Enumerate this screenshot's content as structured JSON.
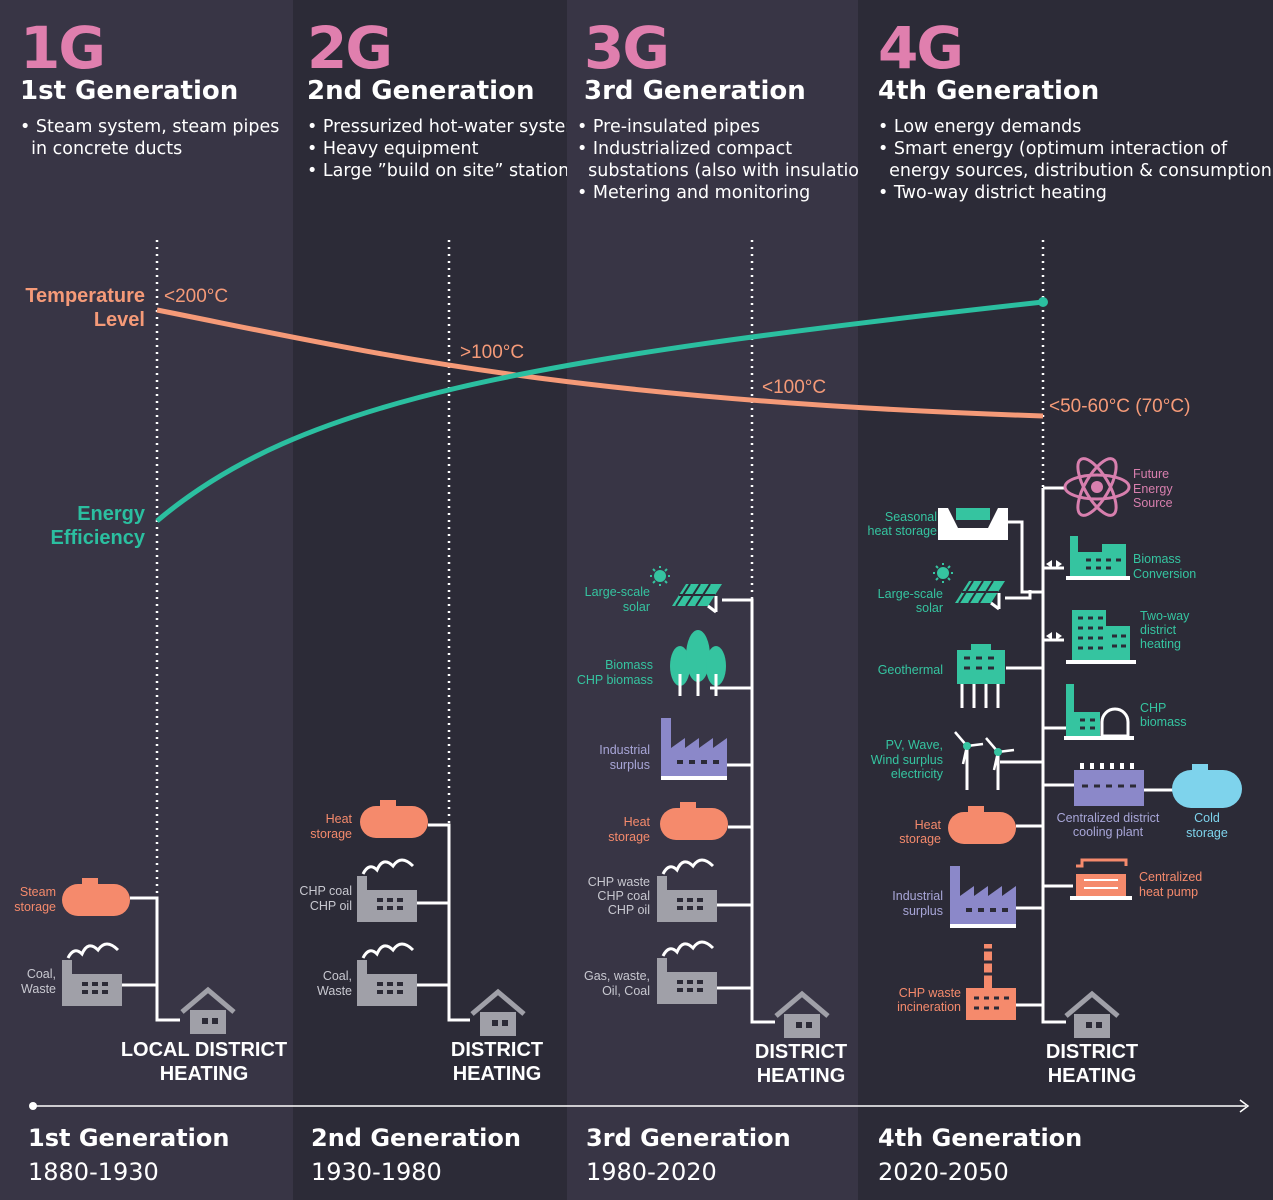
{
  "generations": [
    {
      "short": "1G",
      "title": "1st Generation",
      "bullets": [
        "• Steam system, steam pipes",
        "  in concrete ducts"
      ],
      "temperature": "<200°C",
      "district_label": [
        "LOCAL DISTRICT",
        "HEATING"
      ],
      "footer_title": "1st Generation",
      "years": "1880-1930",
      "sources": [
        {
          "label": [
            "Steam",
            "storage"
          ],
          "icon": "tank-icon"
        },
        {
          "label": [
            "Coal,",
            "Waste"
          ],
          "icon": "factory-icon"
        }
      ]
    },
    {
      "short": "2G",
      "title": "2nd Generation",
      "bullets": [
        "• Pressurized hot-water system",
        "• Heavy equipment",
        "• Large ”build on site” stations"
      ],
      "temperature": ">100°C",
      "district_label": [
        "DISTRICT",
        "HEATING"
      ],
      "footer_title": "2nd Generation",
      "years": "1930-1980",
      "sources": [
        {
          "label": [
            "Heat",
            "storage"
          ],
          "icon": "tank-icon"
        },
        {
          "label": [
            "CHP coal",
            "CHP oil"
          ],
          "icon": "factory-icon"
        },
        {
          "label": [
            "Coal,",
            "Waste"
          ],
          "icon": "factory-icon"
        }
      ]
    },
    {
      "short": "3G",
      "title": "3rd Generation",
      "bullets": [
        "• Pre-insulated pipes",
        "• Industrialized compact",
        "  substations (also with insulation)",
        "• Metering and monitoring"
      ],
      "temperature": "<100°C",
      "district_label": [
        "DISTRICT",
        "HEATING"
      ],
      "footer_title": "3rd Generation",
      "years": "1980-2020",
      "sources": [
        {
          "label": [
            "Large-scale",
            "solar"
          ],
          "icon": "solar-panel-icon"
        },
        {
          "label": [
            "Biomass",
            "CHP biomass"
          ],
          "icon": "trees-icon"
        },
        {
          "label": [
            "Industrial",
            "surplus"
          ],
          "icon": "industry-icon"
        },
        {
          "label": [
            "Heat",
            "storage"
          ],
          "icon": "tank-icon"
        },
        {
          "label": [
            "CHP waste",
            "CHP coal",
            "CHP oil"
          ],
          "icon": "factory-icon"
        },
        {
          "label": [
            "Gas, waste,",
            "Oil, Coal"
          ],
          "icon": "factory-icon"
        }
      ]
    },
    {
      "short": "4G",
      "title": "4th Generation",
      "bullets": [
        "• Low energy demands",
        "• Smart energy (optimum interaction of",
        "  energy sources, distribution & consumption)",
        "• Two-way district heating"
      ],
      "temperature": "<50-60°C (70°C)",
      "district_label": [
        "DISTRICT",
        "HEATING"
      ],
      "footer_title": "4th Generation",
      "years": "2020-2050",
      "sources_left": [
        {
          "label": [
            "Seasonal",
            "heat storage"
          ],
          "icon": "pit-storage-icon"
        },
        {
          "label": [
            "Large-scale",
            "solar"
          ],
          "icon": "solar-panel-icon"
        },
        {
          "label": [
            "Geothermal"
          ],
          "icon": "geothermal-icon"
        },
        {
          "label": [
            "PV, Wave,",
            "Wind surplus",
            "electricity"
          ],
          "icon": "wind-turbine-icon"
        },
        {
          "label": [
            "Heat",
            "storage"
          ],
          "icon": "tank-icon"
        },
        {
          "label": [
            "Industrial",
            "surplus"
          ],
          "icon": "industry-icon"
        },
        {
          "label": [
            "CHP waste",
            "incineration"
          ],
          "icon": "chimney-icon"
        }
      ],
      "sources_right": [
        {
          "label": [
            "Future",
            "Energy",
            "Source"
          ],
          "icon": "atom-icon"
        },
        {
          "label": [
            "Biomass",
            "Conversion"
          ],
          "icon": "plant-icon"
        },
        {
          "label": [
            "Two-way",
            "district",
            "heating"
          ],
          "icon": "building-icon"
        },
        {
          "label": [
            "CHP",
            "biomass"
          ],
          "icon": "chp-icon"
        },
        {
          "label": [
            "Centralized district",
            "cooling plant"
          ],
          "icon": "cooling-plant-icon"
        },
        {
          "label": [
            "Centralized",
            "heat pump"
          ],
          "icon": "heat-pump-icon"
        }
      ],
      "cold_storage": [
        "Cold",
        "storage"
      ]
    }
  ],
  "curves": {
    "temperature_label": [
      "Temperature",
      "Level"
    ],
    "efficiency_label": [
      "Energy",
      "Efficiency"
    ]
  },
  "colors": {
    "temperature": "#f59a78",
    "efficiency": "#2bbfa0",
    "generation_number": "#e07fae",
    "tank": "#f58a6c",
    "factory_gray": "#a0a0a8",
    "teal": "#35c4a0",
    "purple": "#8b88c9",
    "light_blue": "#7ed3ec"
  }
}
